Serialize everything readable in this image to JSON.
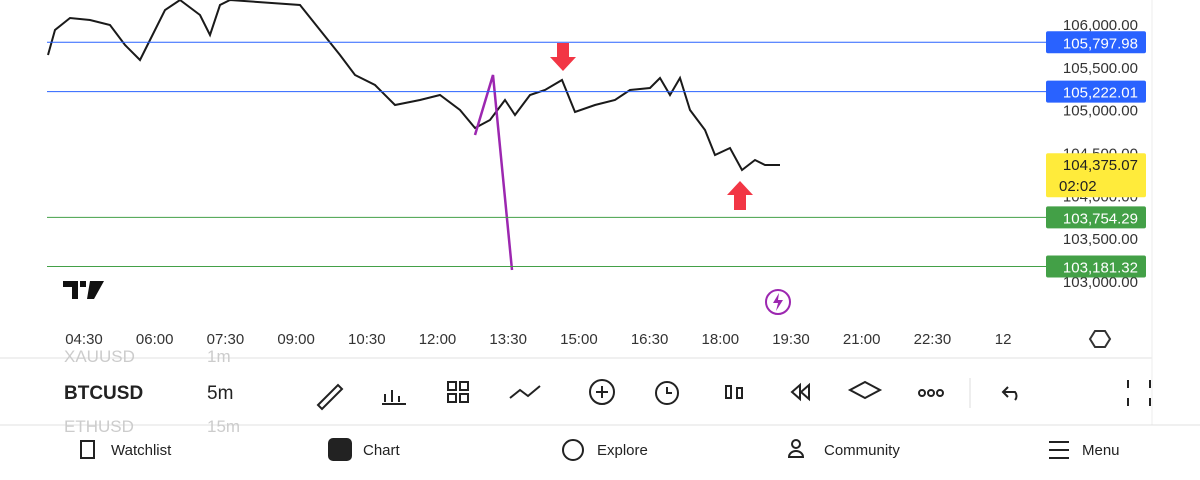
{
  "chart": {
    "yticks": [
      {
        "value": 106000,
        "label": "106,000.00"
      },
      {
        "value": 105500,
        "label": "105,500.00"
      },
      {
        "value": 105000,
        "label": "105,000.00"
      },
      {
        "value": 104500,
        "label": "104,500.00"
      },
      {
        "value": 104000,
        "label": "104,000.00"
      },
      {
        "value": 103500,
        "label": "103,500.00"
      },
      {
        "value": 103000,
        "label": "103,000.00"
      }
    ],
    "price_lines": [
      {
        "value": 105797.98,
        "label": "105,797.98",
        "color": "#2962ff"
      },
      {
        "value": 105222.01,
        "label": "105,222.01",
        "color": "#2962ff"
      },
      {
        "value": 103754.29,
        "label": "103,754.29",
        "color": "#43a047"
      },
      {
        "value": 103181.32,
        "label": "103,181.32",
        "color": "#43a047"
      }
    ],
    "last_price": {
      "value": 104375.07,
      "label": "104,375.07",
      "countdown": "02:02",
      "color": "#ffeb3b"
    },
    "xticks": [
      "04:30",
      "06:00",
      "07:30",
      "09:00",
      "10:30",
      "12:00",
      "13:30",
      "15:00",
      "16:30",
      "18:00",
      "19:30",
      "21:00",
      "22:30",
      "12"
    ]
  },
  "toolbar": {
    "symbols": [
      "XAUUSD",
      "BTCUSD",
      "ETHUSD"
    ],
    "intervals": [
      "1m",
      "5m",
      "15m"
    ]
  },
  "nav": [
    "Watchlist",
    "Chart",
    "Explore",
    "Community",
    "Menu"
  ]
}
